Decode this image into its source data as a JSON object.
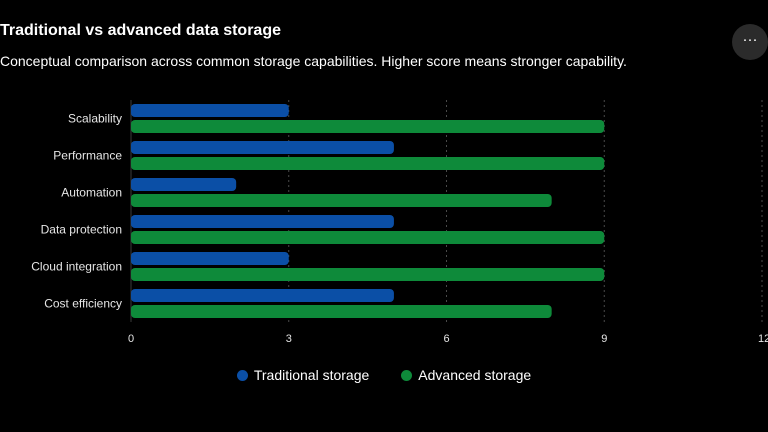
{
  "header": {
    "title": "Traditional vs advanced data storage",
    "subtitle": "Conceptual comparison across common storage capabilities. Higher score means stronger capability.",
    "menu_icon": "more-horizontal-icon",
    "menu_label": "···"
  },
  "chart_data": {
    "type": "bar",
    "orientation": "horizontal",
    "title": "Traditional vs advanced data storage",
    "subtitle": "Conceptual comparison across common storage capabilities. Higher score means stronger capability.",
    "categories": [
      "Scalability",
      "Performance",
      "Automation",
      "Data protection",
      "Cloud integration",
      "Cost efficiency"
    ],
    "series": [
      {
        "name": "Traditional storage",
        "color": "#0b4fa6",
        "values": [
          3,
          5,
          2,
          5,
          3,
          5
        ]
      },
      {
        "name": "Advanced storage",
        "color": "#0e8a3a",
        "values": [
          9,
          9,
          8,
          9,
          9,
          8
        ]
      }
    ],
    "xlim": [
      0,
      12
    ],
    "xticks": [
      0,
      3,
      6,
      9,
      12
    ],
    "xlabel": "",
    "ylabel": "",
    "grid": true,
    "legend": "bottom"
  }
}
